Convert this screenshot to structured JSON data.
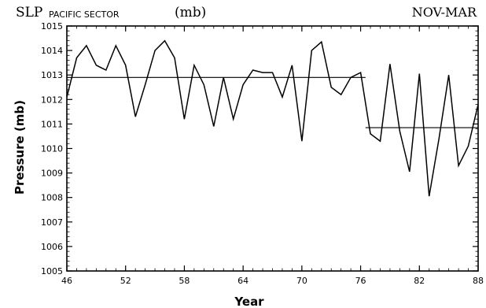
{
  "chart_data": {
    "type": "line",
    "title_main": "SLP",
    "title_sub": "PACIFIC SECTOR",
    "title_units": "(mb)",
    "season": "NOV-MAR",
    "xlabel": "Year",
    "ylabel": "Pressure (mb)",
    "xlim": [
      46,
      88
    ],
    "ylim": [
      1005,
      1015
    ],
    "x_ticks": [
      46,
      52,
      58,
      64,
      70,
      76,
      82,
      88
    ],
    "y_ticks": [
      1005,
      1006,
      1007,
      1008,
      1009,
      1010,
      1011,
      1012,
      1013,
      1014,
      1015
    ],
    "grid": false,
    "series": [
      {
        "x": [
          46,
          47,
          48,
          49,
          50,
          51,
          52,
          53,
          54,
          55,
          56,
          57,
          58,
          59,
          60,
          61,
          62,
          63,
          64,
          65,
          66,
          67,
          68,
          69,
          70,
          71,
          72,
          73,
          74,
          75,
          76,
          77,
          78,
          79,
          80,
          81,
          82,
          83,
          84,
          85,
          86,
          87,
          88
        ],
        "y": [
          1012.1,
          1013.7,
          1014.2,
          1013.4,
          1013.2,
          1014.2,
          1013.4,
          1011.3,
          1012.6,
          1014.0,
          1014.4,
          1013.7,
          1011.2,
          1013.4,
          1012.6,
          1010.9,
          1012.9,
          1011.2,
          1012.6,
          1013.2,
          1013.1,
          1013.1,
          1012.1,
          1013.4,
          1010.3,
          1014.0,
          1014.35,
          1012.5,
          1012.2,
          1012.9,
          1013.1,
          1010.6,
          1010.3,
          1013.45,
          1010.7,
          1009.05,
          1013.05,
          1008.05,
          1010.4,
          1013.0,
          1009.3,
          1010.1,
          1011.8
        ]
      }
    ],
    "mean_lines": [
      {
        "x": [
          46,
          76.5
        ],
        "y": 1012.9
      },
      {
        "x": [
          76.5,
          88
        ],
        "y": 1010.85
      }
    ]
  }
}
